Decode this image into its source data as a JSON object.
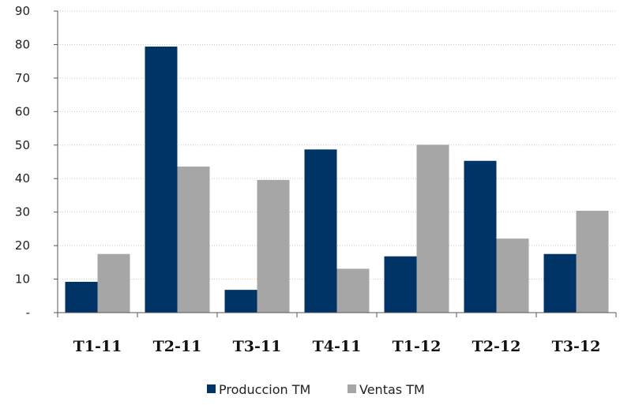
{
  "chart_data": {
    "type": "bar",
    "categories": [
      "T1-11",
      "T2-11",
      "T3-11",
      "T4-11",
      "T1-12",
      "T2-12",
      "T3-12"
    ],
    "series": [
      {
        "name": "Produccion TM",
        "color": "#003366",
        "values": [
          9.2,
          79.4,
          6.8,
          48.7,
          16.8,
          45.3,
          17.5
        ]
      },
      {
        "name": "Ventas TM",
        "color": "#a6a6a6",
        "values": [
          17.5,
          43.6,
          39.6,
          13.1,
          50.1,
          22.1,
          30.4
        ]
      }
    ],
    "yticks": [
      {
        "value": 0,
        "label": "-"
      },
      {
        "value": 10,
        "label": "10"
      },
      {
        "value": 20,
        "label": "20"
      },
      {
        "value": 30,
        "label": "30"
      },
      {
        "value": 40,
        "label": "40"
      },
      {
        "value": 50,
        "label": "50"
      },
      {
        "value": 60,
        "label": "60"
      },
      {
        "value": 70,
        "label": "70"
      },
      {
        "value": 80,
        "label": "80"
      },
      {
        "value": 90,
        "label": "90"
      }
    ],
    "ylim": [
      0,
      90
    ],
    "grid": "dotted-horizontal",
    "legend_position": "bottom",
    "title": "",
    "xlabel": "",
    "ylabel": ""
  }
}
